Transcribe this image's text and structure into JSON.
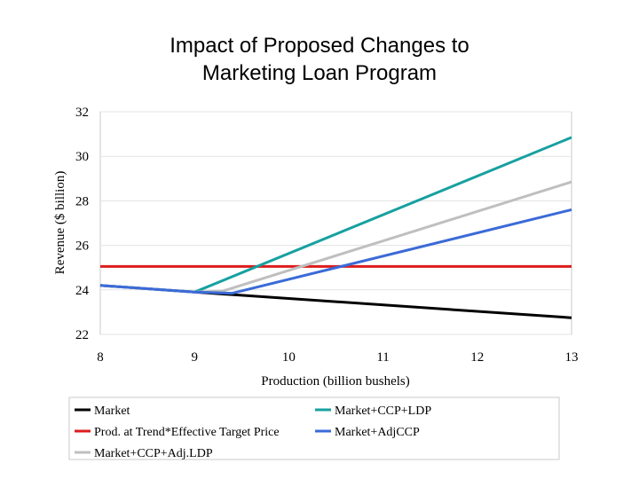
{
  "chart_data": {
    "type": "line",
    "title_lines": [
      "Impact of Proposed Changes to",
      "Marketing Loan Program"
    ],
    "xlabel": "Production (billion bushels)",
    "ylabel": "Revenue ($ billion)",
    "xlim": [
      8,
      13
    ],
    "ylim": [
      22,
      32
    ],
    "xticks": [
      "8",
      "9",
      "10",
      "11",
      "12",
      "13"
    ],
    "yticks": [
      "22",
      "24",
      "26",
      "28",
      "30",
      "32"
    ],
    "grid": true,
    "legend_position": "bottom",
    "series": [
      {
        "name": "Market",
        "color": "#000000",
        "x": [
          8,
          9,
          13
        ],
        "y": [
          24.2,
          23.9,
          22.75
        ]
      },
      {
        "name": "Prod. at Trend*Effective Target Price",
        "color": "#dd1c1c",
        "x": [
          8,
          13
        ],
        "y": [
          25.05,
          25.05
        ]
      },
      {
        "name": "Market+CCP+Adj.LDP",
        "color": "#bfbfbf",
        "x": [
          8,
          9,
          9.3,
          13
        ],
        "y": [
          24.2,
          23.9,
          23.95,
          28.85
        ]
      },
      {
        "name": "Market+CCP+LDP",
        "color": "#17a0a0",
        "x": [
          8,
          9,
          13
        ],
        "y": [
          24.2,
          23.9,
          30.85
        ]
      },
      {
        "name": "Market+AdjCCP",
        "color": "#3b6ad8",
        "x": [
          8,
          9,
          9.4,
          13
        ],
        "y": [
          24.2,
          23.9,
          23.85,
          27.6
        ]
      }
    ],
    "legend_left_order": [
      "Market",
      "Prod. at Trend*Effective Target Price",
      "Market+CCP+Adj.LDP"
    ],
    "legend_right_order": [
      "Market+CCP+LDP",
      "Market+AdjCCP"
    ]
  }
}
